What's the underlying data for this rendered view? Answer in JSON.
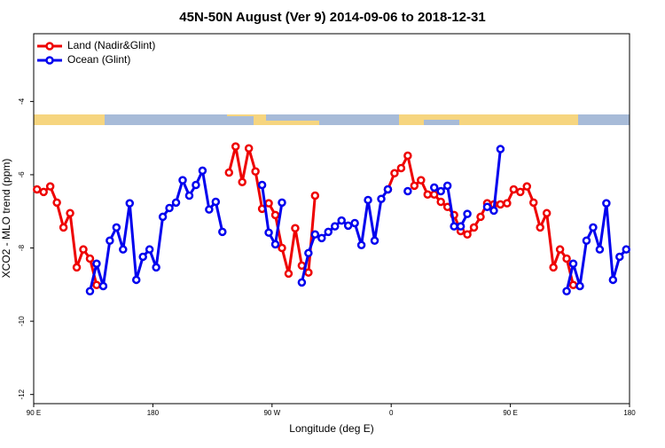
{
  "chart_data": {
    "type": "line",
    "title": "45N-50N August (Ver 9)   2014-09-06 to 2018-12-31",
    "xlabel": "Longitude (deg E)",
    "ylabel": "XCO2 - MLO trend (ppm)",
    "x": [
      92.5,
      97.5,
      102.5,
      107.5,
      112.5,
      117.5,
      122.5,
      127.5,
      132.5,
      137.5,
      142.5,
      147.5,
      152.5,
      157.5,
      162.5,
      167.5,
      172.5,
      177.5,
      182.5,
      187.5,
      192.5,
      197.5,
      202.5,
      207.5,
      212.5,
      217.5,
      222.5,
      227.5,
      232.5,
      237.5,
      242.5,
      247.5,
      252.5,
      257.5,
      262.5,
      267.5,
      272.5,
      277.5,
      282.5,
      287.5,
      292.5,
      297.5,
      302.5,
      307.5,
      312.5,
      317.5,
      322.5,
      327.5,
      332.5,
      337.5,
      342.5,
      347.5,
      352.5,
      357.5,
      362.5,
      367.5,
      372.5,
      377.5,
      382.5,
      387.5,
      392.5,
      397.5,
      402.5,
      407.5,
      412.5,
      417.5,
      422.5,
      427.5,
      432.5,
      437.5,
      442.5,
      447.5,
      452.5,
      457.5,
      462.5,
      467.5,
      472.5,
      477.5,
      482.5,
      487.5,
      492.5,
      497.5,
      502.5,
      507.5,
      512.5,
      517.5,
      522.5,
      527.5,
      532.5,
      537.5
    ],
    "series": [
      {
        "name": "Land (Nadir&Glint)",
        "color": "#ee0000",
        "values": [
          -6.4,
          -6.47,
          -6.32,
          -6.76,
          -7.44,
          -7.05,
          -8.53,
          -8.04,
          -8.29,
          -9.01,
          null,
          null,
          null,
          null,
          null,
          null,
          null,
          null,
          null,
          null,
          null,
          null,
          null,
          null,
          null,
          null,
          null,
          null,
          null,
          -5.94,
          -5.23,
          -6.2,
          -5.28,
          -5.91,
          -6.93,
          -6.78,
          -7.1,
          -8.0,
          -8.7,
          -7.46,
          -8.48,
          -8.67,
          -6.57,
          null,
          null,
          null,
          null,
          null,
          null,
          null,
          null,
          null,
          null,
          -6.4,
          -5.96,
          -5.82,
          -5.48,
          -6.3,
          -6.15,
          -6.54,
          -6.54,
          -6.74,
          -6.88,
          -7.1,
          -7.54,
          -7.63,
          -7.44,
          -7.15,
          -6.78,
          -6.81,
          -6.81,
          -6.78,
          -6.4,
          -6.47,
          -6.32,
          -6.76,
          -7.44,
          -7.05,
          -8.53,
          -8.04,
          -8.29,
          -9.01,
          null,
          null,
          null,
          null,
          null,
          null,
          null,
          null
        ]
      },
      {
        "name": "Ocean (Glint)",
        "color": "#0000ee",
        "values": [
          null,
          null,
          null,
          null,
          null,
          null,
          null,
          null,
          -9.18,
          -8.43,
          -9.04,
          -7.8,
          -7.44,
          -8.04,
          -6.78,
          -8.87,
          -8.24,
          -8.04,
          -8.53,
          -7.15,
          -6.91,
          -6.76,
          -6.15,
          -6.57,
          -6.28,
          -5.89,
          -6.95,
          -6.74,
          -7.56,
          null,
          null,
          null,
          null,
          null,
          -6.28,
          -7.58,
          -7.9,
          -6.76,
          null,
          null,
          -8.94,
          -8.14,
          -7.63,
          -7.73,
          -7.56,
          -7.41,
          -7.25,
          -7.39,
          -7.32,
          -7.92,
          -6.69,
          -7.8,
          -6.66,
          -6.4,
          null,
          null,
          -6.45,
          null,
          null,
          null,
          -6.35,
          -6.45,
          -6.3,
          -7.41,
          -7.41,
          -7.07,
          null,
          null,
          -6.88,
          -6.98,
          -5.3,
          null,
          null,
          null,
          null,
          null,
          null,
          null,
          null,
          null,
          -9.18,
          -8.43,
          -9.04,
          -7.8,
          -7.44,
          -8.04,
          -6.78,
          -8.87,
          -8.24,
          -8.04
        ]
      }
    ],
    "xlim": [
      90,
      540
    ],
    "xticks": [
      {
        "value": 90,
        "label": "90 E"
      },
      {
        "value": 180,
        "label": "180"
      },
      {
        "value": 270,
        "label": "90 W"
      },
      {
        "value": 360,
        "label": "0"
      },
      {
        "value": 450,
        "label": "90 E"
      },
      {
        "value": 540,
        "label": "180"
      }
    ],
    "ylim": [
      -12.25,
      -2.15
    ],
    "yticks": [
      -4,
      -6,
      -8,
      -10,
      -12
    ],
    "legend": "upper left"
  }
}
